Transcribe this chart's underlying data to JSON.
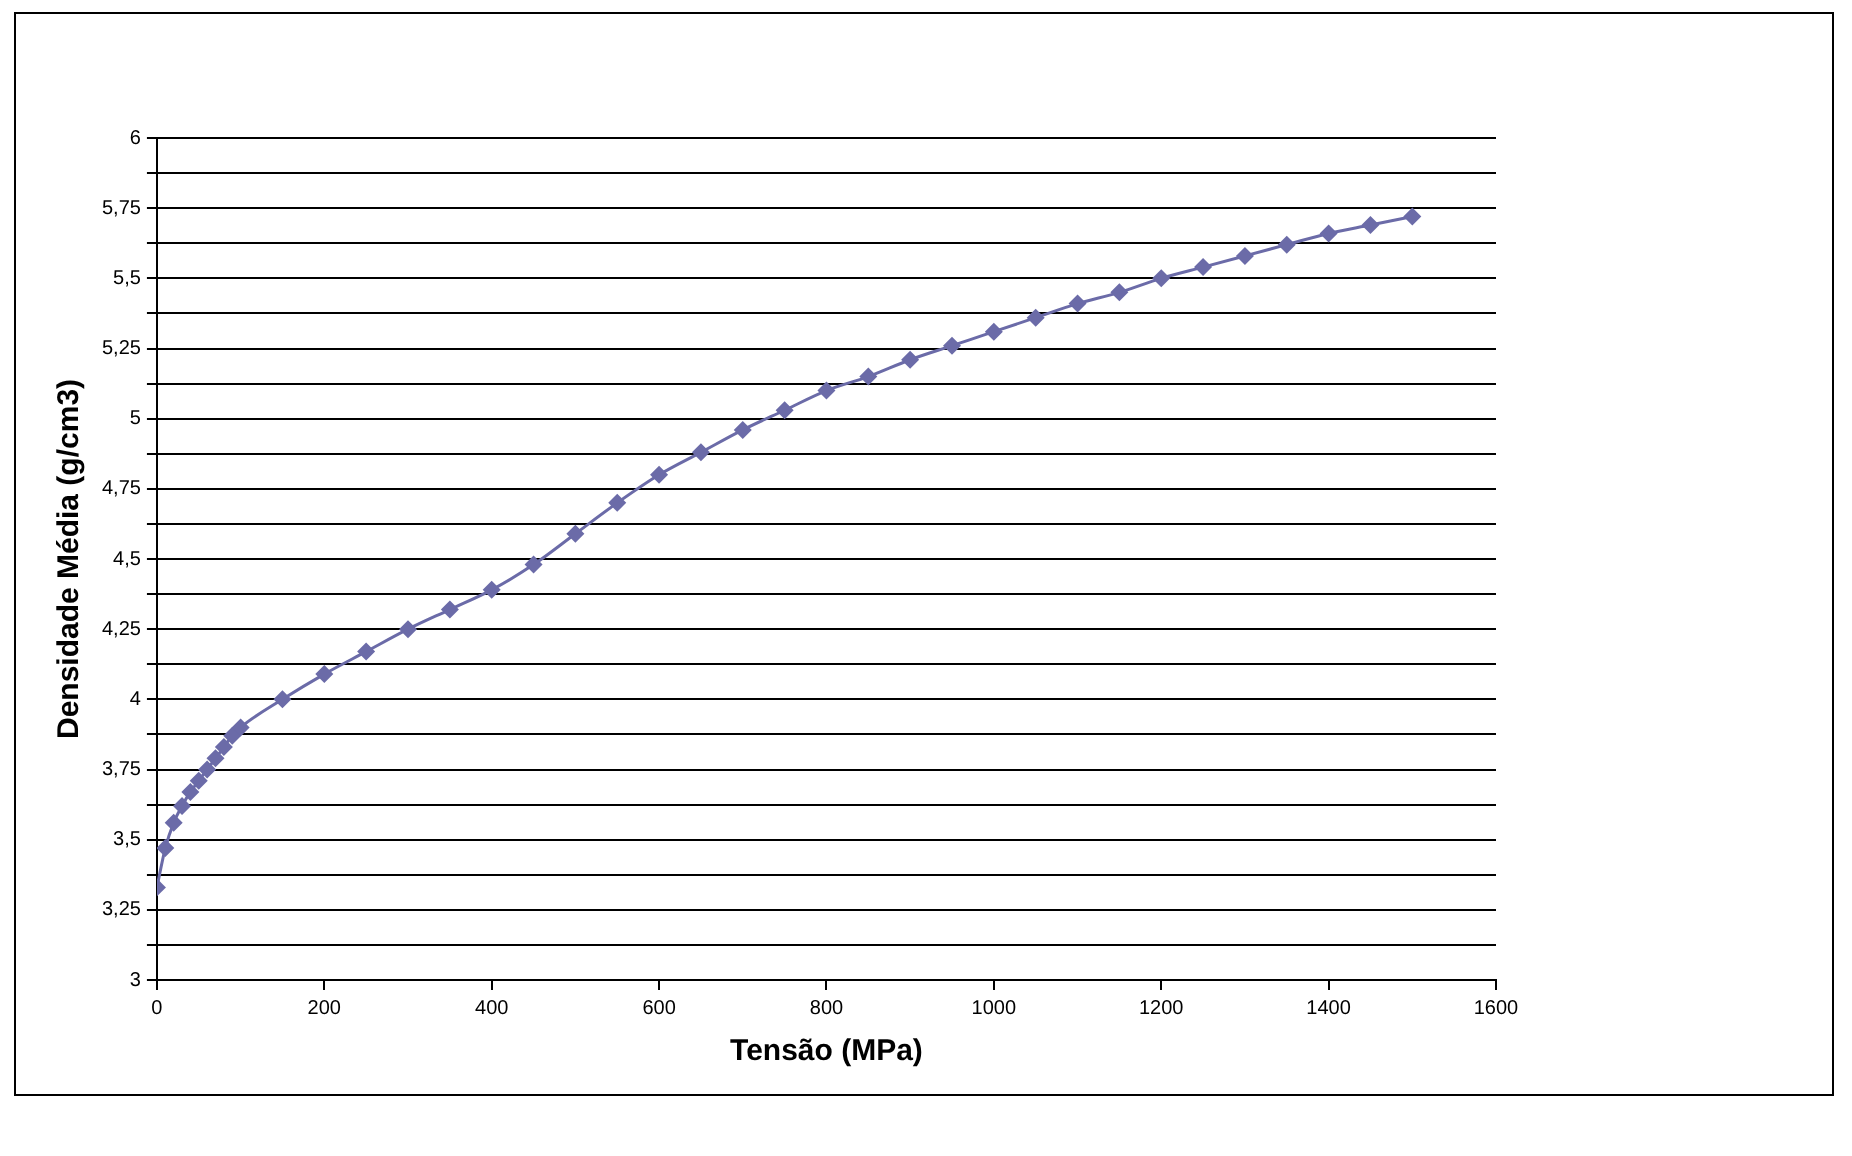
{
  "chart_data": {
    "type": "line",
    "xlabel": "Tensão (MPa)",
    "ylabel": "Densidade Média (g/cm3)",
    "x": [
      0,
      10,
      20,
      30,
      40,
      50,
      60,
      70,
      80,
      90,
      100,
      150,
      200,
      250,
      300,
      350,
      400,
      450,
      500,
      550,
      600,
      650,
      700,
      750,
      800,
      850,
      900,
      950,
      1000,
      1050,
      1100,
      1150,
      1200,
      1250,
      1300,
      1350,
      1400,
      1450,
      1500
    ],
    "series": [
      {
        "color": "#6b6ba8",
        "values": [
          3.33,
          3.47,
          3.56,
          3.62,
          3.67,
          3.71,
          3.75,
          3.79,
          3.83,
          3.87,
          3.9,
          4.0,
          4.09,
          4.17,
          4.25,
          4.32,
          4.39,
          4.48,
          4.59,
          4.7,
          4.8,
          4.88,
          4.96,
          5.03,
          5.1,
          5.15,
          5.21,
          5.26,
          5.31,
          5.36,
          5.41,
          5.45,
          5.5,
          5.54,
          5.58,
          5.62,
          5.66,
          5.69,
          5.72
        ]
      }
    ],
    "xlim": [
      0,
      1600
    ],
    "xticks": [
      0,
      200,
      400,
      600,
      800,
      1000,
      1200,
      1400,
      1600
    ],
    "ylim": [
      3,
      6
    ],
    "yticks": [
      3,
      {
        "value": 3.125,
        "label": null
      },
      {
        "value": 3.25,
        "label": "3,25"
      },
      {
        "value": 3.375,
        "label": null
      },
      {
        "value": 3.5,
        "label": "3,5"
      },
      {
        "value": 3.625,
        "label": null
      },
      {
        "value": 3.75,
        "label": "3,75"
      },
      {
        "value": 3.875,
        "label": null
      },
      4,
      {
        "value": 4.125,
        "label": null
      },
      {
        "value": 4.25,
        "label": "4,25"
      },
      {
        "value": 4.375,
        "label": null
      },
      {
        "value": 4.5,
        "label": "4,5"
      },
      {
        "value": 4.625,
        "label": null
      },
      {
        "value": 4.75,
        "label": "4,75"
      },
      {
        "value": 4.875,
        "label": null
      },
      5,
      {
        "value": 5.125,
        "label": null
      },
      {
        "value": 5.25,
        "label": "5,25"
      },
      {
        "value": 5.375,
        "label": null
      },
      {
        "value": 5.5,
        "label": "5,5"
      },
      {
        "value": 5.625,
        "label": null
      },
      {
        "value": 5.75,
        "label": "5,75"
      },
      {
        "value": 5.875,
        "label": null
      },
      6
    ],
    "grid": "y",
    "legend": false,
    "marker": "diamond",
    "line_style": "solid"
  }
}
